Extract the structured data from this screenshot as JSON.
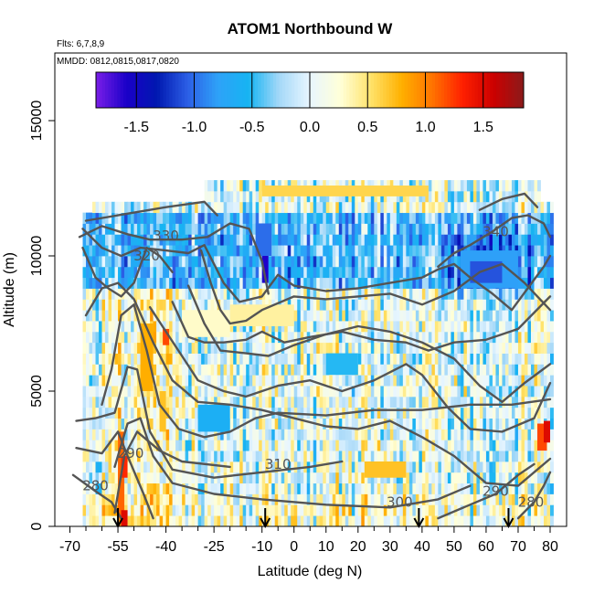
{
  "chart_data": {
    "type": "heatmap",
    "title": "ATOM1 Northbound W",
    "flights_label": "Flts: 6,7,8,9",
    "mmdd_label": "MMDD: 0812,0815,0817,0820",
    "xlabel": "Latitude (deg N)",
    "ylabel": "Altitude (m)",
    "xlim": [
      -70,
      82
    ],
    "ylim": [
      0,
      17500
    ],
    "x_ticks": [
      -70,
      -55,
      -40,
      -25,
      -10,
      0,
      10,
      20,
      30,
      40,
      50,
      60,
      70,
      80
    ],
    "x_minor_ticks": [
      -65,
      -60,
      -50,
      -45,
      -35,
      -30,
      -20,
      -15,
      -5,
      5,
      15,
      25,
      35,
      45,
      55,
      65,
      75
    ],
    "y_ticks": [
      0,
      5000,
      10000,
      15000
    ],
    "colorbar": {
      "range": [
        -1.85,
        1.85
      ],
      "ticks": [
        -1.5,
        -1.0,
        -0.5,
        0.0,
        0.5,
        1.0,
        1.5
      ],
      "tick_labels": [
        "-1.5",
        "-1.0",
        "-0.5",
        "0.0",
        "0.5",
        "1.0",
        "1.5"
      ],
      "colors": [
        "#7a1fe8",
        "#1a00c8",
        "#0018b0",
        "#2c5fe6",
        "#2ea2f8",
        "#16b4f2",
        "#a5d8f8",
        "#e8f6ff",
        "#ffffd8",
        "#ffe36a",
        "#ffb000",
        "#ff7400",
        "#ff2000",
        "#cc0000",
        "#8b1a1a"
      ]
    },
    "grid": false,
    "theta_contours": [
      {
        "label": "280",
        "label_at": [
          -62,
          1500
        ],
        "points": [
          [
            -69,
            1900
          ],
          [
            -62,
            1300
          ],
          [
            -57,
            900
          ],
          [
            -54,
            300
          ]
        ]
      },
      {
        "label": "290",
        "label_at": [
          -51,
          2700
        ],
        "points": [
          [
            -68,
            2900
          ],
          [
            -60,
            2700
          ],
          [
            -55,
            3500
          ],
          [
            -52,
            2600
          ],
          [
            -47,
            1200
          ],
          [
            -44,
            300
          ]
        ]
      },
      {
        "label": "310",
        "label_at": [
          -5,
          2300
        ],
        "points": [
          [
            -68,
            3900
          ],
          [
            -62,
            4000
          ],
          [
            -56,
            4200
          ],
          [
            -52,
            5900
          ],
          [
            -49,
            5800
          ],
          [
            -45,
            3500
          ],
          [
            -38,
            2100
          ],
          [
            -25,
            1800
          ],
          [
            -10,
            2000
          ],
          [
            5,
            2200
          ],
          [
            15,
            2400
          ]
        ]
      },
      {
        "label": "300",
        "label_at": [
          33,
          900
        ],
        "points": [
          [
            -56,
            2200
          ],
          [
            -52,
            3800
          ],
          [
            -48,
            4000
          ],
          [
            -44,
            2600
          ],
          [
            -38,
            1600
          ],
          [
            -25,
            1200
          ],
          [
            -10,
            1000
          ],
          [
            10,
            800
          ],
          [
            30,
            700
          ],
          [
            45,
            1000
          ],
          [
            55,
            1500
          ]
        ]
      },
      {
        "label": "290",
        "label_at": [
          63,
          1300
        ],
        "points": [
          [
            45,
            300
          ],
          [
            55,
            800
          ],
          [
            63,
            1200
          ],
          [
            70,
            1900
          ],
          [
            75,
            2300
          ]
        ]
      },
      {
        "label": "280",
        "label_at": [
          74,
          900
        ],
        "points": [
          [
            70,
            300
          ],
          [
            75,
            900
          ],
          [
            78,
            1500
          ],
          [
            80,
            2000
          ]
        ]
      },
      {
        "label": "",
        "label_at": null,
        "points": [
          [
            -56,
            500
          ],
          [
            -53,
            2600
          ],
          [
            -49,
            3500
          ],
          [
            -42,
            2800
          ],
          [
            -35,
            2400
          ],
          [
            -20,
            2200
          ]
        ]
      },
      {
        "label": "",
        "label_at": null,
        "points": [
          [
            -60,
            4500
          ],
          [
            -57,
            5800
          ],
          [
            -54,
            7800
          ],
          [
            -50,
            8200
          ],
          [
            -46,
            6500
          ],
          [
            -42,
            4500
          ],
          [
            -36,
            3600
          ],
          [
            -28,
            3300
          ],
          [
            -20,
            3500
          ],
          [
            -12,
            4000
          ],
          [
            -5,
            4200
          ],
          [
            10,
            4100
          ],
          [
            25,
            4300
          ],
          [
            40,
            4300
          ],
          [
            55,
            4500
          ],
          [
            68,
            4500
          ],
          [
            80,
            4700
          ]
        ]
      },
      {
        "label": "",
        "label_at": null,
        "points": [
          [
            -65,
            7800
          ],
          [
            -60,
            8800
          ],
          [
            -55,
            9000
          ],
          [
            -50,
            8400
          ],
          [
            -44,
            6800
          ],
          [
            -38,
            5400
          ],
          [
            -30,
            4600
          ],
          [
            -20,
            4500
          ],
          [
            -10,
            4300
          ],
          [
            0,
            4000
          ],
          [
            10,
            3700
          ],
          [
            20,
            3600
          ],
          [
            30,
            3900
          ],
          [
            40,
            3300
          ],
          [
            50,
            2600
          ],
          [
            60,
            1600
          ],
          [
            70,
            1500
          ],
          [
            80,
            2500
          ]
        ]
      },
      {
        "label": "",
        "label_at": null,
        "points": [
          [
            -45,
            8100
          ],
          [
            -40,
            7200
          ],
          [
            -35,
            6300
          ],
          [
            -30,
            5400
          ],
          [
            -22,
            5000
          ],
          [
            -15,
            4800
          ],
          [
            -5,
            5200
          ],
          [
            5,
            5400
          ],
          [
            15,
            5000
          ],
          [
            25,
            5400
          ],
          [
            35,
            6000
          ],
          [
            40,
            5600
          ],
          [
            48,
            4400
          ],
          [
            55,
            3600
          ],
          [
            65,
            3500
          ],
          [
            75,
            4000
          ],
          [
            80,
            5300
          ]
        ]
      },
      {
        "label": "",
        "label_at": null,
        "points": [
          [
            -38,
            8300
          ],
          [
            -33,
            7000
          ],
          [
            -28,
            6800
          ],
          [
            -22,
            6800
          ],
          [
            -15,
            6900
          ],
          [
            -10,
            7200
          ],
          [
            -3,
            6800
          ],
          [
            5,
            7000
          ],
          [
            15,
            7200
          ],
          [
            25,
            6900
          ],
          [
            35,
            6800
          ],
          [
            42,
            6500
          ],
          [
            50,
            6800
          ],
          [
            60,
            6900
          ],
          [
            70,
            7300
          ],
          [
            80,
            8500
          ]
        ]
      },
      {
        "label": "",
        "label_at": null,
        "points": [
          [
            -33,
            8900
          ],
          [
            -28,
            7500
          ],
          [
            -23,
            6500
          ],
          [
            -15,
            6400
          ],
          [
            -8,
            6300
          ],
          [
            0,
            6700
          ],
          [
            10,
            7100
          ],
          [
            20,
            7400
          ],
          [
            30,
            7200
          ],
          [
            40,
            6800
          ],
          [
            50,
            6200
          ],
          [
            58,
            5200
          ],
          [
            65,
            4600
          ],
          [
            72,
            5300
          ],
          [
            80,
            6000
          ]
        ]
      },
      {
        "label": "",
        "label_at": null,
        "points": [
          [
            -29,
            10200
          ],
          [
            -26,
            9000
          ],
          [
            -23,
            8000
          ],
          [
            -20,
            7500
          ],
          [
            -15,
            7600
          ],
          [
            -10,
            8000
          ],
          [
            0,
            8500
          ],
          [
            10,
            8400
          ],
          [
            20,
            8500
          ],
          [
            30,
            8600
          ],
          [
            40,
            8200
          ],
          [
            50,
            8700
          ],
          [
            58,
            9400
          ],
          [
            65,
            9700
          ],
          [
            72,
            9000
          ],
          [
            80,
            8000
          ]
        ]
      },
      {
        "label": "",
        "label_at": null,
        "points": [
          [
            -66,
            10300
          ],
          [
            -62,
            9200
          ],
          [
            -58,
            8800
          ],
          [
            -54,
            8500
          ],
          [
            -50,
            9000
          ],
          [
            -46,
            10300
          ],
          [
            -42,
            10000
          ],
          [
            -38,
            9400
          ]
        ]
      },
      {
        "label": "320",
        "label_at": [
          -46,
          10000
        ],
        "points": [
          [
            -66,
            11000
          ],
          [
            -60,
            10300
          ],
          [
            -54,
            10000
          ],
          [
            -48,
            10300
          ],
          [
            -40,
            10200
          ],
          [
            -33,
            10100
          ],
          [
            -28,
            10400
          ],
          [
            -22,
            9000
          ],
          [
            -17,
            8300
          ],
          [
            -10,
            8500
          ],
          [
            -5,
            9300
          ],
          [
            0,
            8900
          ],
          [
            10,
            8700
          ],
          [
            20,
            8800
          ],
          [
            30,
            9000
          ],
          [
            40,
            9200
          ],
          [
            45,
            9500
          ],
          [
            50,
            9700
          ],
          [
            55,
            9200
          ],
          [
            62,
            8600
          ],
          [
            68,
            8000
          ],
          [
            73,
            8800
          ],
          [
            78,
            9600
          ],
          [
            80,
            10000
          ]
        ]
      },
      {
        "label": "330",
        "label_at": [
          -40,
          10750
        ],
        "points": [
          [
            -67,
            10700
          ],
          [
            -60,
            11100
          ],
          [
            -52,
            10800
          ],
          [
            -45,
            10600
          ],
          [
            -35,
            10600
          ],
          [
            -27,
            10700
          ],
          [
            -20,
            11200
          ],
          [
            -14,
            11000
          ],
          [
            -10,
            9800
          ],
          [
            -8,
            8600
          ]
        ]
      },
      {
        "label": "340",
        "label_at": [
          63,
          10900
        ],
        "points": [
          [
            -65,
            11300
          ],
          [
            -55,
            11500
          ],
          [
            -40,
            11800
          ],
          [
            -28,
            12000
          ],
          [
            -24,
            11500
          ]
        ]
      },
      {
        "label": "",
        "label_at": null,
        "points": [
          [
            45,
            9600
          ],
          [
            50,
            10100
          ],
          [
            55,
            10400
          ],
          [
            62,
            10900
          ],
          [
            68,
            11400
          ],
          [
            73,
            11500
          ],
          [
            78,
            11200
          ],
          [
            80,
            10700
          ]
        ]
      },
      {
        "label": "",
        "label_at": null,
        "points": [
          [
            58,
            11700
          ],
          [
            65,
            12100
          ],
          [
            72,
            12300
          ],
          [
            76,
            11800
          ]
        ]
      }
    ],
    "flight_markers_latitude": [
      -55,
      -9,
      39,
      67
    ],
    "heatmap_blocks": [
      {
        "x": [
          -55,
          -53
        ],
        "y": [
          300,
          3500
        ],
        "value": 1.1
      },
      {
        "x": [
          -54,
          -52
        ],
        "y": [
          1800,
          2600
        ],
        "value": 1.3
      },
      {
        "x": [
          -54,
          -52
        ],
        "y": [
          0,
          600
        ],
        "value": 1.5
      },
      {
        "x": [
          -48,
          -44
        ],
        "y": [
          5000,
          7500
        ],
        "value": 0.8
      },
      {
        "x": [
          -42,
          -40
        ],
        "y": [
          3500,
          5000
        ],
        "value": 0.7
      },
      {
        "x": [
          -41,
          -39
        ],
        "y": [
          6700,
          7300
        ],
        "value": 1.2
      },
      {
        "x": [
          76,
          79
        ],
        "y": [
          2800,
          3800
        ],
        "value": 1.2
      },
      {
        "x": [
          78,
          80
        ],
        "y": [
          3100,
          3900
        ],
        "value": 1.5
      },
      {
        "x": [
          -10,
          -8
        ],
        "y": [
          9000,
          10000
        ],
        "value": -1.6
      },
      {
        "x": [
          -12,
          -7
        ],
        "y": [
          10000,
          11200
        ],
        "value": -1.0
      },
      {
        "x": [
          52,
          70
        ],
        "y": [
          8800,
          10200
        ],
        "value": -0.8
      },
      {
        "x": [
          55,
          65
        ],
        "y": [
          9000,
          9800
        ],
        "value": -1.1
      },
      {
        "x": [
          -10,
          42
        ],
        "y": [
          12200,
          12600
        ],
        "value": 0.6
      },
      {
        "x": [
          -20,
          0
        ],
        "y": [
          7400,
          8200
        ],
        "value": 0.4
      },
      {
        "x": [
          -35,
          -20
        ],
        "y": [
          7000,
          8000
        ],
        "value": 0.3
      },
      {
        "x": [
          22,
          35
        ],
        "y": [
          1800,
          2400
        ],
        "value": 0.7
      },
      {
        "x": [
          -30,
          -20
        ],
        "y": [
          3500,
          4500
        ],
        "value": -0.6
      },
      {
        "x": [
          10,
          20
        ],
        "y": [
          5600,
          6400
        ],
        "value": -0.5
      }
    ]
  }
}
